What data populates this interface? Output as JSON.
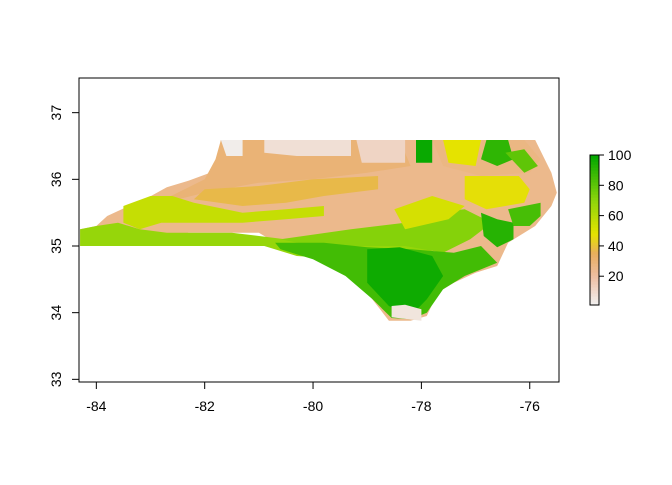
{
  "chart_data": {
    "type": "heatmap",
    "title": "",
    "xlabel": "",
    "ylabel": "",
    "xlim": [
      -84.32,
      -75.46
    ],
    "ylim": [
      32.96,
      37.52
    ],
    "x_ticks": [
      -84,
      -82,
      -80,
      -78,
      -76
    ],
    "x_tick_labels": [
      "-84",
      "-82",
      "-80",
      "-78",
      "-76"
    ],
    "y_ticks": [
      33,
      34,
      35,
      36,
      37
    ],
    "y_tick_labels": [
      "33",
      "34",
      "35",
      "36",
      "37"
    ],
    "legend": {
      "placement": "right",
      "range": [
        1,
        100
      ],
      "ticks": [
        20,
        40,
        60,
        80,
        100
      ],
      "tick_labels": [
        "20",
        "40",
        "60",
        "80",
        "100"
      ],
      "color_stops": [
        {
          "value": 1,
          "color": "#f2f2f2"
        },
        {
          "value": 20,
          "color": "#edbfa3"
        },
        {
          "value": 35,
          "color": "#e9ad5f"
        },
        {
          "value": 48,
          "color": "#e5e300"
        },
        {
          "value": 70,
          "color": "#8ed50b"
        },
        {
          "value": 100,
          "color": "#00a600"
        }
      ]
    },
    "regions": [
      {
        "value": 25,
        "polygon": [
          [
            -84.3,
            35.0
          ],
          [
            -84.3,
            35.25
          ],
          [
            -84.0,
            35.3
          ],
          [
            -83.8,
            35.45
          ],
          [
            -83.4,
            35.6
          ],
          [
            -83.1,
            35.7
          ],
          [
            -82.7,
            35.88
          ],
          [
            -82.3,
            35.98
          ],
          [
            -81.9,
            36.1
          ],
          [
            -81.7,
            36.3
          ],
          [
            -81.7,
            36.59
          ],
          [
            -75.9,
            36.59
          ],
          [
            -75.6,
            36.1
          ],
          [
            -75.5,
            35.8
          ],
          [
            -75.6,
            35.6
          ],
          [
            -75.9,
            35.3
          ],
          [
            -76.4,
            35.05
          ],
          [
            -76.6,
            34.7
          ],
          [
            -77.0,
            34.6
          ],
          [
            -77.4,
            34.45
          ],
          [
            -77.7,
            34.3
          ],
          [
            -77.9,
            33.95
          ],
          [
            -78.2,
            33.88
          ],
          [
            -78.6,
            33.88
          ],
          [
            -79.0,
            34.3
          ],
          [
            -79.7,
            34.8
          ],
          [
            -80.8,
            35.1
          ],
          [
            -81.0,
            35.2
          ],
          [
            -82.3,
            35.2
          ],
          [
            -83.0,
            35.0
          ]
        ]
      },
      {
        "value": 30,
        "polygon": [
          [
            -83.0,
            35.6
          ],
          [
            -82.5,
            35.8
          ],
          [
            -82.0,
            36.0
          ],
          [
            -81.8,
            36.3
          ],
          [
            -81.7,
            36.59
          ],
          [
            -79.0,
            36.59
          ],
          [
            -78.4,
            36.59
          ],
          [
            -78.2,
            36.2
          ],
          [
            -79.0,
            36.1
          ],
          [
            -80.0,
            36.0
          ],
          [
            -81.0,
            35.95
          ],
          [
            -82.0,
            35.8
          ]
        ]
      },
      {
        "value": 3,
        "polygon": [
          [
            -81.7,
            36.59
          ],
          [
            -81.3,
            36.59
          ],
          [
            -81.3,
            36.35
          ],
          [
            -81.6,
            36.35
          ]
        ]
      },
      {
        "value": 8,
        "polygon": [
          [
            -80.9,
            36.59
          ],
          [
            -79.3,
            36.59
          ],
          [
            -79.3,
            36.35
          ],
          [
            -80.3,
            36.35
          ],
          [
            -80.9,
            36.4
          ]
        ]
      },
      {
        "value": 12,
        "polygon": [
          [
            -79.2,
            36.59
          ],
          [
            -78.3,
            36.59
          ],
          [
            -78.3,
            36.25
          ],
          [
            -79.1,
            36.25
          ]
        ]
      },
      {
        "value": 38,
        "polygon": [
          [
            -82.2,
            35.7
          ],
          [
            -81.3,
            35.6
          ],
          [
            -80.5,
            35.65
          ],
          [
            -79.8,
            35.75
          ],
          [
            -78.8,
            35.85
          ],
          [
            -78.8,
            36.05
          ],
          [
            -80.0,
            36.0
          ],
          [
            -81.0,
            35.9
          ],
          [
            -82.0,
            35.85
          ]
        ]
      },
      {
        "value": 56,
        "polygon": [
          [
            -83.2,
            35.25
          ],
          [
            -83.5,
            35.35
          ],
          [
            -83.5,
            35.6
          ],
          [
            -83.0,
            35.75
          ],
          [
            -82.6,
            35.75
          ],
          [
            -82.2,
            35.65
          ],
          [
            -81.3,
            35.5
          ],
          [
            -80.5,
            35.55
          ],
          [
            -79.8,
            35.6
          ],
          [
            -79.8,
            35.45
          ],
          [
            -80.5,
            35.4
          ],
          [
            -81.3,
            35.35
          ],
          [
            -82.3,
            35.35
          ],
          [
            -82.8,
            35.35
          ]
        ]
      },
      {
        "value": 68,
        "polygon": [
          [
            -84.3,
            35.0
          ],
          [
            -84.3,
            35.25
          ],
          [
            -84.0,
            35.3
          ],
          [
            -83.6,
            35.35
          ],
          [
            -83.2,
            35.25
          ],
          [
            -82.7,
            35.2
          ],
          [
            -82.2,
            35.2
          ],
          [
            -81.5,
            35.2
          ],
          [
            -80.7,
            35.12
          ],
          [
            -80.0,
            35.05
          ],
          [
            -79.5,
            35.0
          ],
          [
            -79.0,
            35.0
          ],
          [
            -78.5,
            35.05
          ],
          [
            -78.0,
            35.0
          ],
          [
            -77.6,
            34.85
          ],
          [
            -78.4,
            34.75
          ],
          [
            -79.4,
            34.8
          ],
          [
            -80.3,
            34.85
          ],
          [
            -80.9,
            35.0
          ],
          [
            -82.0,
            35.0
          ],
          [
            -83.0,
            35.0
          ]
        ]
      },
      {
        "value": 72,
        "polygon": [
          [
            -80.6,
            35.1
          ],
          [
            -79.3,
            35.25
          ],
          [
            -78.3,
            35.35
          ],
          [
            -77.8,
            35.5
          ],
          [
            -77.2,
            35.55
          ],
          [
            -76.7,
            35.35
          ],
          [
            -77.1,
            35.1
          ],
          [
            -77.6,
            34.9
          ],
          [
            -78.3,
            35.0
          ],
          [
            -79.3,
            35.0
          ],
          [
            -80.0,
            35.0
          ]
        ]
      },
      {
        "value": 52,
        "polygon": [
          [
            -78.3,
            35.25
          ],
          [
            -77.5,
            35.4
          ],
          [
            -77.2,
            35.6
          ],
          [
            -77.8,
            35.75
          ],
          [
            -78.5,
            35.55
          ]
        ]
      },
      {
        "value": 86,
        "polygon": [
          [
            -80.7,
            35.05
          ],
          [
            -79.8,
            35.05
          ],
          [
            -79.0,
            34.98
          ],
          [
            -78.2,
            34.95
          ],
          [
            -77.4,
            34.9
          ],
          [
            -76.9,
            35.0
          ],
          [
            -76.6,
            34.75
          ],
          [
            -77.2,
            34.55
          ],
          [
            -77.6,
            34.35
          ],
          [
            -77.9,
            34.0
          ],
          [
            -78.2,
            33.9
          ],
          [
            -78.55,
            33.92
          ],
          [
            -78.9,
            34.2
          ],
          [
            -79.4,
            34.55
          ],
          [
            -80.0,
            34.8
          ],
          [
            -80.6,
            34.95
          ]
        ]
      },
      {
        "value": 97,
        "polygon": [
          [
            -79.0,
            34.95
          ],
          [
            -78.4,
            34.98
          ],
          [
            -77.8,
            34.85
          ],
          [
            -77.6,
            34.55
          ],
          [
            -77.9,
            34.2
          ],
          [
            -78.2,
            33.95
          ],
          [
            -78.6,
            34.1
          ],
          [
            -79.0,
            34.45
          ]
        ]
      },
      {
        "value": 6,
        "polygon": [
          [
            -78.55,
            33.93
          ],
          [
            -78.0,
            33.88
          ],
          [
            -78.0,
            34.05
          ],
          [
            -78.3,
            34.12
          ],
          [
            -78.55,
            34.1
          ]
        ]
      },
      {
        "value": 92,
        "polygon": [
          [
            -76.9,
            35.5
          ],
          [
            -76.6,
            35.4
          ],
          [
            -76.3,
            35.35
          ],
          [
            -76.3,
            35.1
          ],
          [
            -76.6,
            34.98
          ],
          [
            -76.85,
            35.15
          ]
        ]
      },
      {
        "value": 85,
        "polygon": [
          [
            -76.4,
            35.55
          ],
          [
            -75.8,
            35.65
          ],
          [
            -75.8,
            35.45
          ],
          [
            -76.0,
            35.3
          ],
          [
            -76.3,
            35.3
          ]
        ]
      },
      {
        "value": 47,
        "polygon": [
          [
            -77.2,
            36.05
          ],
          [
            -76.2,
            36.05
          ],
          [
            -76.0,
            35.85
          ],
          [
            -76.1,
            35.65
          ],
          [
            -76.8,
            35.55
          ],
          [
            -77.2,
            35.7
          ]
        ]
      },
      {
        "value": 27,
        "polygon": [
          [
            -77.8,
            36.59
          ],
          [
            -76.1,
            36.59
          ],
          [
            -75.8,
            36.3
          ],
          [
            -76.0,
            36.1
          ],
          [
            -76.9,
            36.05
          ],
          [
            -77.6,
            36.2
          ]
        ]
      },
      {
        "value": 98,
        "polygon": [
          [
            -78.1,
            36.59
          ],
          [
            -77.8,
            36.59
          ],
          [
            -77.8,
            36.25
          ],
          [
            -78.1,
            36.25
          ]
        ]
      },
      {
        "value": 48,
        "polygon": [
          [
            -77.6,
            36.59
          ],
          [
            -76.9,
            36.59
          ],
          [
            -77.0,
            36.2
          ],
          [
            -77.5,
            36.25
          ]
        ]
      },
      {
        "value": 90,
        "polygon": [
          [
            -76.8,
            36.59
          ],
          [
            -76.4,
            36.59
          ],
          [
            -76.3,
            36.3
          ],
          [
            -76.6,
            36.2
          ],
          [
            -76.9,
            36.3
          ]
        ]
      },
      {
        "value": 80,
        "polygon": [
          [
            -76.45,
            36.4
          ],
          [
            -76.1,
            36.45
          ],
          [
            -75.85,
            36.2
          ],
          [
            -76.1,
            36.1
          ]
        ]
      }
    ]
  }
}
